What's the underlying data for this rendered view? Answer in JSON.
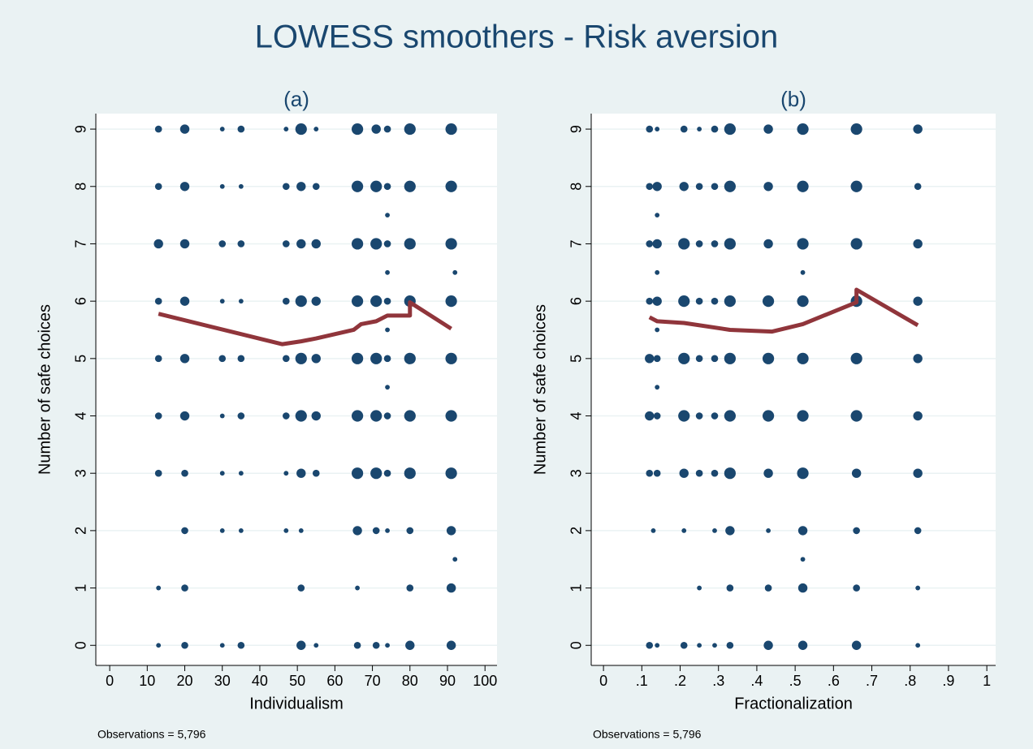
{
  "title": "LOWESS smoothers - Risk aversion",
  "chart_data": [
    {
      "type": "scatter",
      "subtitle": "(a)",
      "x_label": "Individualism",
      "y_label": "Number of safe choices",
      "note": "Observations = 5,796",
      "xlim": [
        -3.7,
        103.2
      ],
      "ylim": [
        -0.35,
        9.27
      ],
      "xticks": [
        0,
        10,
        20,
        30,
        40,
        50,
        60,
        70,
        80,
        90,
        100
      ],
      "yticks": [
        0,
        1,
        2,
        3,
        4,
        5,
        6,
        7,
        8,
        9
      ],
      "grid": true,
      "series": [
        {
          "type": "scatter",
          "color": "#1a476f",
          "x": [
            13,
            13,
            13,
            13,
            13,
            13,
            13,
            13,
            13,
            20,
            20,
            20,
            20,
            20,
            20,
            20,
            20,
            20,
            20,
            30,
            30,
            30,
            30,
            30,
            30,
            30,
            30,
            30,
            35,
            35,
            35,
            35,
            35,
            35,
            35,
            35,
            35,
            47,
            47,
            47,
            47,
            47,
            47,
            47,
            47,
            51,
            51,
            51,
            51,
            51,
            51,
            51,
            51,
            51,
            51,
            55,
            55,
            55,
            55,
            55,
            55,
            55,
            55,
            66,
            66,
            66,
            66,
            66,
            66,
            66,
            66,
            66,
            66,
            71,
            71,
            71,
            71,
            71,
            71,
            71,
            71,
            71,
            74,
            74,
            74,
            74,
            74,
            74,
            74,
            74,
            74,
            74,
            74,
            74,
            74,
            80,
            80,
            80,
            80,
            80,
            80,
            80,
            80,
            80,
            80,
            91,
            91,
            92,
            91,
            91,
            91,
            91,
            91,
            92,
            91,
            91,
            91
          ],
          "y": [
            0,
            1,
            3,
            4,
            5,
            6,
            7,
            8,
            9,
            0,
            1,
            2,
            3,
            4,
            5,
            6,
            7,
            8,
            9,
            0,
            2,
            3,
            4,
            5,
            6,
            7,
            8,
            9,
            0,
            2,
            3,
            4,
            5,
            6,
            7,
            8,
            9,
            2,
            3,
            4,
            5,
            6,
            7,
            8,
            9,
            0,
            1,
            2,
            3,
            4,
            5,
            6,
            7,
            8,
            9,
            0,
            3,
            4,
            5,
            6,
            7,
            8,
            9,
            0,
            1,
            2,
            3,
            4,
            5,
            6,
            7,
            8,
            9,
            0,
            2,
            3,
            4,
            5,
            6,
            7,
            8,
            9,
            0,
            2,
            3,
            4,
            4.5,
            5,
            5.5,
            6,
            6.5,
            7,
            7.5,
            8,
            9,
            0,
            1,
            2,
            3,
            4,
            5,
            6,
            7,
            8,
            9,
            0,
            1,
            1.5,
            2,
            3,
            4,
            5,
            6,
            6.5,
            7,
            8,
            9
          ],
          "sizes": [
            1,
            1,
            2,
            2,
            2,
            2,
            3,
            2,
            2,
            2,
            2,
            2,
            2,
            3,
            3,
            3,
            3,
            3,
            3,
            1,
            1,
            1,
            1,
            2,
            1,
            2,
            1,
            1,
            2,
            1,
            1,
            2,
            2,
            1,
            2,
            1,
            2,
            1,
            1,
            2,
            2,
            2,
            2,
            2,
            1,
            3,
            2,
            1,
            3,
            4,
            4,
            4,
            3,
            3,
            4,
            1,
            2,
            3,
            3,
            3,
            3,
            2,
            1,
            2,
            1,
            3,
            4,
            4,
            4,
            4,
            4,
            4,
            4,
            2,
            2,
            4,
            4,
            4,
            4,
            4,
            4,
            3,
            1,
            1,
            2,
            2,
            1,
            2,
            1,
            2,
            1,
            2,
            1,
            2,
            2,
            3,
            2,
            2,
            4,
            4,
            4,
            4,
            4,
            4,
            4,
            3,
            3,
            1,
            3,
            4,
            4,
            4,
            4,
            1,
            4,
            4,
            4
          ]
        },
        {
          "type": "line",
          "color": "#90353b",
          "x": [
            13,
            46,
            51,
            55,
            65,
            67,
            71,
            74,
            80,
            80,
            91
          ],
          "y": [
            5.78,
            5.25,
            5.3,
            5.35,
            5.5,
            5.6,
            5.65,
            5.75,
            5.75,
            5.98,
            5.52
          ]
        }
      ]
    },
    {
      "type": "scatter",
      "subtitle": "(b)",
      "x_label": "Fractionalization",
      "y_label": "Number of safe choices",
      "note": "Observations = 5,796",
      "xlim": [
        -0.032,
        1.023
      ],
      "ylim": [
        -0.35,
        9.27
      ],
      "xticks": [
        0,
        {
          "value": 0.1,
          "label": ".1"
        },
        {
          "value": 0.2,
          "label": ".2"
        },
        {
          "value": 0.3,
          "label": ".3"
        },
        {
          "value": 0.4,
          "label": ".4"
        },
        {
          "value": 0.5,
          "label": ".5"
        },
        {
          "value": 0.6,
          "label": ".6"
        },
        {
          "value": 0.7,
          "label": ".7"
        },
        {
          "value": 0.8,
          "label": ".8"
        },
        {
          "value": 0.9,
          "label": ".9"
        },
        1
      ],
      "yticks": [
        0,
        1,
        2,
        3,
        4,
        5,
        6,
        7,
        8,
        9
      ],
      "grid": true,
      "series": [
        {
          "type": "scatter",
          "color": "#1a476f",
          "x": [
            0.12,
            0.13,
            0.12,
            0.12,
            0.12,
            0.12,
            0.12,
            0.12,
            0.12,
            0.14,
            0.14,
            0.14,
            0.14,
            0.14,
            0.14,
            0.14,
            0.14,
            0.14,
            0.14,
            0.14,
            0.14,
            0.21,
            0.21,
            0.21,
            0.21,
            0.21,
            0.21,
            0.21,
            0.21,
            0.21,
            0.25,
            0.25,
            0.25,
            0.25,
            0.25,
            0.25,
            0.25,
            0.25,
            0.25,
            0.29,
            0.29,
            0.29,
            0.29,
            0.29,
            0.29,
            0.29,
            0.29,
            0.29,
            0.33,
            0.33,
            0.33,
            0.33,
            0.33,
            0.33,
            0.33,
            0.33,
            0.33,
            0.33,
            0.43,
            0.43,
            0.43,
            0.43,
            0.43,
            0.43,
            0.43,
            0.43,
            0.43,
            0.43,
            0.52,
            0.52,
            0.52,
            0.52,
            0.52,
            0.52,
            0.52,
            0.52,
            0.52,
            0.52,
            0.52,
            0.52,
            0.66,
            0.66,
            0.66,
            0.66,
            0.66,
            0.66,
            0.66,
            0.66,
            0.66,
            0.66,
            0.82,
            0.82,
            0.82,
            0.82,
            0.82,
            0.82,
            0.82,
            0.82,
            0.82,
            0.82
          ],
          "y": [
            0,
            2,
            3,
            4,
            5,
            6,
            7,
            8,
            9,
            0,
            3,
            4,
            4.5,
            5,
            5.5,
            6,
            6.5,
            7,
            7.5,
            8,
            9,
            0,
            2,
            3,
            4,
            5,
            6,
            7,
            8,
            9,
            0,
            1,
            3,
            4,
            5,
            6,
            7,
            8,
            9,
            0,
            2,
            3,
            4,
            5,
            6,
            7,
            8,
            9,
            0,
            1,
            2,
            3,
            4,
            5,
            6,
            7,
            8,
            9,
            0,
            1,
            2,
            3,
            4,
            5,
            6,
            7,
            8,
            9,
            0,
            1,
            1.5,
            2,
            3,
            4,
            5,
            6,
            6.5,
            7,
            8,
            9,
            0,
            1,
            2,
            3,
            4,
            5,
            6,
            7,
            8,
            9,
            0,
            1,
            2,
            3,
            4,
            5,
            6,
            7,
            8,
            9
          ],
          "sizes": [
            2,
            1,
            2,
            3,
            3,
            2,
            2,
            2,
            2,
            1,
            2,
            2,
            1,
            2,
            1,
            3,
            1,
            3,
            1,
            3,
            1,
            2,
            1,
            3,
            4,
            4,
            4,
            4,
            3,
            2,
            1,
            1,
            2,
            2,
            2,
            2,
            2,
            2,
            1,
            1,
            1,
            2,
            2,
            2,
            2,
            2,
            2,
            2,
            2,
            2,
            3,
            4,
            4,
            4,
            4,
            4,
            4,
            4,
            3,
            2,
            1,
            3,
            4,
            4,
            4,
            3,
            3,
            3,
            3,
            3,
            1,
            3,
            4,
            4,
            4,
            4,
            1,
            4,
            4,
            4,
            3,
            2,
            2,
            3,
            4,
            4,
            4,
            4,
            4,
            4,
            1,
            1,
            2,
            3,
            3,
            3,
            3,
            3,
            2,
            3
          ]
        },
        {
          "type": "line",
          "color": "#90353b",
          "x": [
            0.12,
            0.14,
            0.21,
            0.33,
            0.44,
            0.52,
            0.66,
            0.66,
            0.82
          ],
          "y": [
            5.72,
            5.65,
            5.62,
            5.5,
            5.47,
            5.6,
            5.98,
            6.2,
            5.58
          ]
        }
      ]
    }
  ]
}
